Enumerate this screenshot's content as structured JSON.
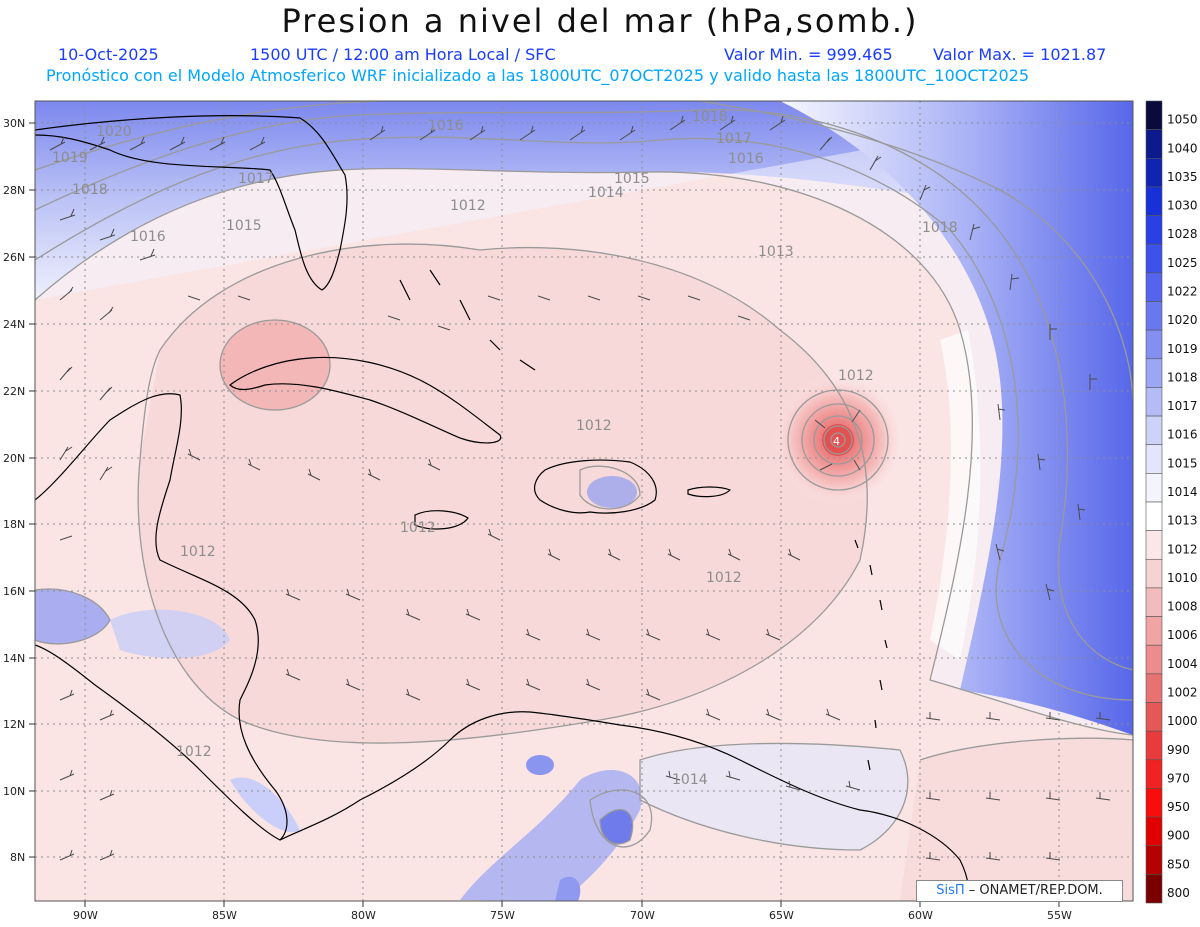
{
  "header": {
    "title": "Presion a nivel del mar (hPa,somb.)",
    "date": "10-Oct-2025",
    "time": "1500 UTC / 12:00 am Hora Local / SFC",
    "min": "Valor Min. = 999.465",
    "max": "Valor Max. = 1021.87",
    "forecast": "Pronóstico con el Modelo Atmosferico WRF inicializado a las 1800UTC_07OCT2025 y valido hasta las  1800UTC_10OCT2025"
  },
  "map": {
    "lat_labels": [
      "30N",
      "28N",
      "26N",
      "24N",
      "22N",
      "20N",
      "18N",
      "16N",
      "14N",
      "12N",
      "10N",
      "8N"
    ],
    "lon_labels": [
      "90W",
      "85W",
      "80W",
      "75W",
      "70W",
      "65W",
      "60W",
      "55W"
    ],
    "isobar_labels": [
      {
        "text": "1020"
      },
      {
        "text": "1018"
      },
      {
        "text": "1019"
      },
      {
        "text": "1017"
      },
      {
        "text": "1016"
      },
      {
        "text": "1015"
      },
      {
        "text": "1016"
      },
      {
        "text": "1015"
      },
      {
        "text": "1014"
      },
      {
        "text": "1012"
      },
      {
        "text": "1018"
      },
      {
        "text": "1017"
      },
      {
        "text": "1016"
      },
      {
        "text": "1013"
      },
      {
        "text": "1018"
      },
      {
        "text": "1012"
      },
      {
        "text": "1012"
      },
      {
        "text": "1012"
      },
      {
        "text": "1012"
      },
      {
        "text": "1012"
      },
      {
        "text": "1014"
      },
      {
        "text": "1012"
      }
    ],
    "low_center_value": "4",
    "colors": {
      "high": "#4f5fe8",
      "mid": "#ffffff",
      "low": "#f4b8b8",
      "low_center": "#e85a5a",
      "coast": "#000000",
      "isobar": "#9a9a9a",
      "barb": "#4a4a4a"
    }
  },
  "colorbar": {
    "levels": [
      {
        "label": "1050",
        "color": "#0a0a3c"
      },
      {
        "label": "1040",
        "color": "#0c1a8c"
      },
      {
        "label": "1035",
        "color": "#1024b4"
      },
      {
        "label": "1030",
        "color": "#1830d8"
      },
      {
        "label": "1028",
        "color": "#2a40e6"
      },
      {
        "label": "1025",
        "color": "#3d52ea"
      },
      {
        "label": "1022",
        "color": "#5464ee"
      },
      {
        "label": "1020",
        "color": "#6a78f0"
      },
      {
        "label": "1019",
        "color": "#8390f2"
      },
      {
        "label": "1018",
        "color": "#9ba6f4"
      },
      {
        "label": "1017",
        "color": "#b4bcf6"
      },
      {
        "label": "1016",
        "color": "#cdd2f9"
      },
      {
        "label": "1015",
        "color": "#e2e5fb"
      },
      {
        "label": "1014",
        "color": "#f3f4fd"
      },
      {
        "label": "1013",
        "color": "#ffffff"
      },
      {
        "label": "1012",
        "color": "#fbe7e7"
      },
      {
        "label": "1010",
        "color": "#f6d2d2"
      },
      {
        "label": "1008",
        "color": "#f3bcbc"
      },
      {
        "label": "1006",
        "color": "#f0a4a4"
      },
      {
        "label": "1004",
        "color": "#ec8c8c"
      },
      {
        "label": "1002",
        "color": "#e87272"
      },
      {
        "label": "1000",
        "color": "#e45858"
      },
      {
        "label": "990",
        "color": "#e83c3c"
      },
      {
        "label": "970",
        "color": "#f02222"
      },
      {
        "label": "950",
        "color": "#f80c0c"
      },
      {
        "label": "900",
        "color": "#e00000"
      },
      {
        "label": "850",
        "color": "#b40000"
      },
      {
        "label": "800",
        "color": "#7a0000"
      }
    ]
  },
  "credit": {
    "brand": "SisΠ",
    "text": "– ONAMET/REP.DOM."
  }
}
